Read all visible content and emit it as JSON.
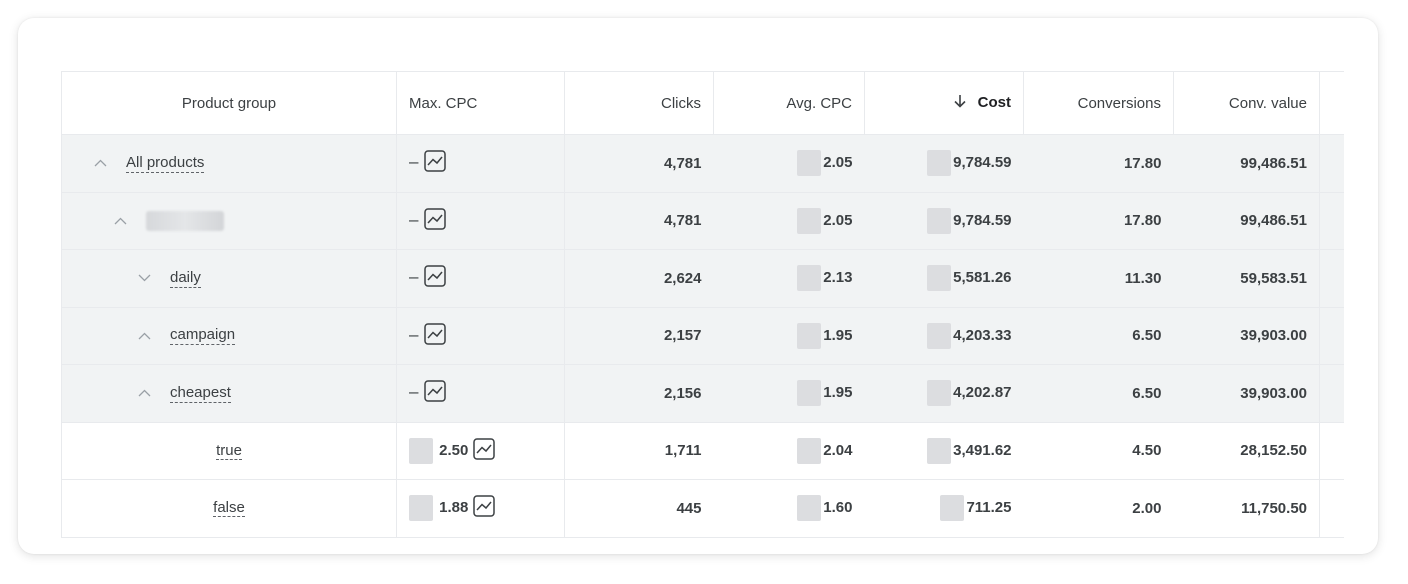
{
  "table": {
    "headers": {
      "product_group": "Product group",
      "max_cpc": "Max. CPC",
      "clicks": "Clicks",
      "avg_cpc": "Avg. CPC",
      "cost": "Cost",
      "conversions": "Conversions",
      "conv_value": "Conv. value"
    },
    "sort": {
      "column": "cost",
      "direction": "descending",
      "icon": "arrow-down-icon"
    },
    "rows": [
      {
        "label": "All products",
        "level": 0,
        "expand": "collapse",
        "max_cpc": "–",
        "clicks": "4,781",
        "avg_cpc": "2.05",
        "cost": "9,784.59",
        "conversions": "17.80",
        "conv_value": "99,486.51"
      },
      {
        "label": "",
        "level": 1,
        "expand": "collapse",
        "redacted": true,
        "max_cpc": "–",
        "clicks": "4,781",
        "avg_cpc": "2.05",
        "cost": "9,784.59",
        "conversions": "17.80",
        "conv_value": "99,486.51"
      },
      {
        "label": "daily",
        "level": 2,
        "expand": "expand",
        "max_cpc": "–",
        "clicks": "2,624",
        "avg_cpc": "2.13",
        "cost": "5,581.26",
        "conversions": "11.30",
        "conv_value": "59,583.51"
      },
      {
        "label": "campaign",
        "level": 2,
        "expand": "collapse",
        "max_cpc": "–",
        "clicks": "2,157",
        "avg_cpc": "1.95",
        "cost": "4,203.33",
        "conversions": "6.50",
        "conv_value": "39,903.00"
      },
      {
        "label": "cheapest",
        "level": 3,
        "expand": "collapse",
        "max_cpc": "–",
        "clicks": "2,156",
        "avg_cpc": "1.95",
        "cost": "4,202.87",
        "conversions": "6.50",
        "conv_value": "39,903.00"
      },
      {
        "label": "true",
        "level": 4,
        "expand": "none",
        "max_cpc": "2.50",
        "clicks": "1,711",
        "avg_cpc": "2.04",
        "cost": "3,491.62",
        "conversions": "4.50",
        "conv_value": "28,152.50"
      },
      {
        "label": "false",
        "level": 4,
        "expand": "none",
        "max_cpc": "1.88",
        "clicks": "445",
        "avg_cpc": "1.60",
        "cost": "711.25",
        "conversions": "2.00",
        "conv_value": "11,750.50"
      }
    ]
  },
  "icons": {
    "expand": "chevron-down-icon",
    "collapse": "chevron-up-icon",
    "bid_simulator": "trend-chart-icon"
  },
  "colors": {
    "group_row_bg": "#f1f3f4",
    "border": "#e8eaed",
    "text": "#3c4043"
  }
}
